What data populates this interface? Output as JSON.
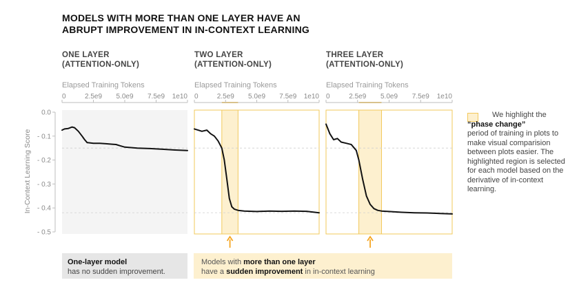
{
  "title_line1": "MODELS WITH MORE THAN ONE LAYER HAVE AN",
  "title_line2": "ABRUPT IMPROVEMENT IN IN-CONTEXT LEARNING",
  "colors": {
    "highlight_fill": "#fdf0cf",
    "highlight_edge": "#f2c85a",
    "arrow": "#f5a623",
    "line": "#111111",
    "left_panel_bg": "#f4f4f4",
    "left_note_bg": "#e6e6e6"
  },
  "legend": {
    "text_before": "We highlight the",
    "bold": "“phase change”",
    "text_after": "period of training in plots to make visual comparision between plots easier. The highlighted region is selected for each model based on the derivative of in-context learning."
  },
  "notes": {
    "left_bold": "One-layer model",
    "left_rest": "has no sudden improvement.",
    "right_part1": "Models with ",
    "right_bold1": "more than one layer",
    "right_part2": "have a ",
    "right_bold2": "sudden improvement",
    "right_part3": " in in-context learning"
  },
  "chart_data": [
    {
      "type": "line",
      "panel_title_line1": "ONE LAYER",
      "panel_title_line2": "(ATTENTION-ONLY)",
      "xlabel": "Elapsed Training Tokens",
      "ylabel": "In-Context Learning Score",
      "xlim": [
        0,
        10000000000
      ],
      "ylim": [
        -0.5,
        0
      ],
      "xticks": [
        0,
        2500000000,
        5000000000,
        7500000000,
        10000000000
      ],
      "xtick_labels": [
        "0",
        "2.5e9",
        "5.0e9",
        "7.5e9",
        "1e10"
      ],
      "yticks": [
        0,
        -0.1,
        -0.2,
        -0.3,
        -0.4,
        -0.5
      ],
      "ytick_labels": [
        "0.0",
        "- 0.1",
        "- 0.2",
        "- 0.3",
        "- 0.4",
        "- 0.5"
      ],
      "phase_change": null,
      "series": [
        {
          "name": "one-layer",
          "x": [
            0,
            200000000,
            500000000,
            800000000,
            1000000000,
            1300000000,
            1600000000,
            1800000000,
            2000000000,
            2500000000,
            3000000000,
            3500000000,
            4000000000,
            4300000000,
            4600000000,
            5000000000,
            5500000000,
            6000000000,
            7000000000,
            8000000000,
            9000000000,
            10000000000
          ],
          "y": [
            -0.075,
            -0.07,
            -0.068,
            -0.062,
            -0.065,
            -0.08,
            -0.1,
            -0.115,
            -0.127,
            -0.13,
            -0.13,
            -0.132,
            -0.134,
            -0.135,
            -0.14,
            -0.146,
            -0.148,
            -0.15,
            -0.152,
            -0.155,
            -0.158,
            -0.16
          ]
        }
      ]
    },
    {
      "type": "line",
      "panel_title_line1": "TWO LAYER",
      "panel_title_line2": "(ATTENTION-ONLY)",
      "xlabel": "Elapsed Training Tokens",
      "xlim": [
        0,
        10000000000
      ],
      "ylim": [
        -0.5,
        0
      ],
      "xticks": [
        0,
        2500000000,
        5000000000,
        7500000000,
        10000000000
      ],
      "xtick_labels": [
        "0",
        "2.5e9",
        "5.0e9",
        "7.5e9",
        "1e10"
      ],
      "phase_change": [
        2200000000,
        3500000000
      ],
      "series": [
        {
          "name": "two-layer",
          "x": [
            0,
            300000000,
            600000000,
            1000000000,
            1300000000,
            1600000000,
            1900000000,
            2200000000,
            2400000000,
            2600000000,
            2800000000,
            3000000000,
            3200000000,
            3500000000,
            4000000000,
            5000000000,
            6000000000,
            7000000000,
            8000000000,
            9000000000,
            10000000000
          ],
          "y": [
            -0.07,
            -0.075,
            -0.08,
            -0.075,
            -0.09,
            -0.1,
            -0.12,
            -0.15,
            -0.2,
            -0.28,
            -0.36,
            -0.395,
            -0.405,
            -0.41,
            -0.413,
            -0.415,
            -0.413,
            -0.414,
            -0.413,
            -0.414,
            -0.42
          ]
        }
      ]
    },
    {
      "type": "line",
      "panel_title_line1": "THREE LAYER",
      "panel_title_line2": "(ATTENTION-ONLY)",
      "xlabel": "Elapsed Training Tokens",
      "xlim": [
        0,
        10000000000
      ],
      "ylim": [
        -0.5,
        0
      ],
      "xticks": [
        0,
        2500000000,
        5000000000,
        7500000000,
        10000000000
      ],
      "xtick_labels": [
        "0",
        "2.5e9",
        "5.0e9",
        "7.5e9",
        "1e10"
      ],
      "phase_change": [
        2600000000,
        4400000000
      ],
      "series": [
        {
          "name": "three-layer",
          "x": [
            0,
            300000000,
            600000000,
            900000000,
            1200000000,
            1600000000,
            2000000000,
            2400000000,
            2600000000,
            2900000000,
            3200000000,
            3500000000,
            3800000000,
            4100000000,
            4400000000,
            5000000000,
            6000000000,
            7000000000,
            8000000000,
            9000000000,
            10000000000
          ],
          "y": [
            -0.05,
            -0.09,
            -0.115,
            -0.11,
            -0.125,
            -0.13,
            -0.135,
            -0.16,
            -0.2,
            -0.28,
            -0.35,
            -0.385,
            -0.403,
            -0.41,
            -0.413,
            -0.415,
            -0.418,
            -0.42,
            -0.421,
            -0.423,
            -0.425
          ]
        }
      ]
    }
  ]
}
